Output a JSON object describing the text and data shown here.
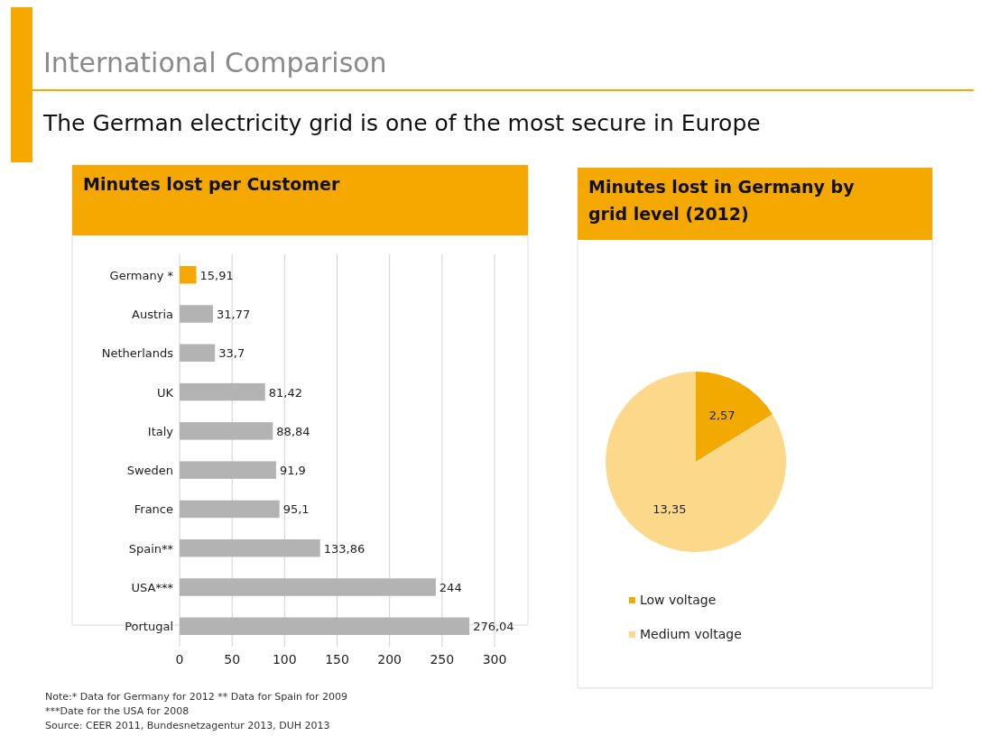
{
  "chart_data": [
    {
      "type": "other",
      "title": "International Comparison",
      "subtitle": "The German electricity grid is one of the most secure in Europe"
    },
    {
      "type": "bar",
      "orientation": "horizontal",
      "title": "Minutes lost per Customer",
      "categories": [
        "Germany *",
        "Austria",
        "Netherlands",
        "UK",
        "Italy",
        "Sweden",
        "France",
        "Spain**",
        "USA***",
        "Portugal"
      ],
      "values": [
        15.91,
        31.77,
        33.7,
        81.42,
        88.84,
        91.9,
        95.1,
        133.86,
        244,
        276.04
      ],
      "colors": [
        "#f5a800",
        "#b3b3b3",
        "#b3b3b3",
        "#b3b3b3",
        "#b3b3b3",
        "#b3b3b3",
        "#b3b3b3",
        "#b3b3b3",
        "#b3b3b3",
        "#b3b3b3"
      ],
      "value_labels": [
        "15,91",
        "31,77",
        "33,7",
        "81,42",
        "88,84",
        "91,9",
        "95,1",
        "133,86",
        "244",
        "276,04"
      ],
      "xlim": [
        0,
        300
      ],
      "xticks": [
        0,
        50,
        100,
        150,
        200,
        250,
        300
      ],
      "grid": "x",
      "annotations": [
        "Note:* Data for Germany for 2012     ** Data for Spain for 2009",
        "***Date for the USA for 2008",
        "Source: CEER 2011,  Bundesnetzagentur 2013, DUH 2013"
      ]
    },
    {
      "type": "pie",
      "title": "Minutes lost in Germany by grid level (2012)",
      "categories": [
        "Low voltage",
        "Medium voltage"
      ],
      "values": [
        2.57,
        13.35
      ],
      "colors": [
        "#f2a900",
        "#fcd98a"
      ],
      "value_labels": [
        "2,57",
        "13,35"
      ],
      "legend": "bottom"
    }
  ]
}
